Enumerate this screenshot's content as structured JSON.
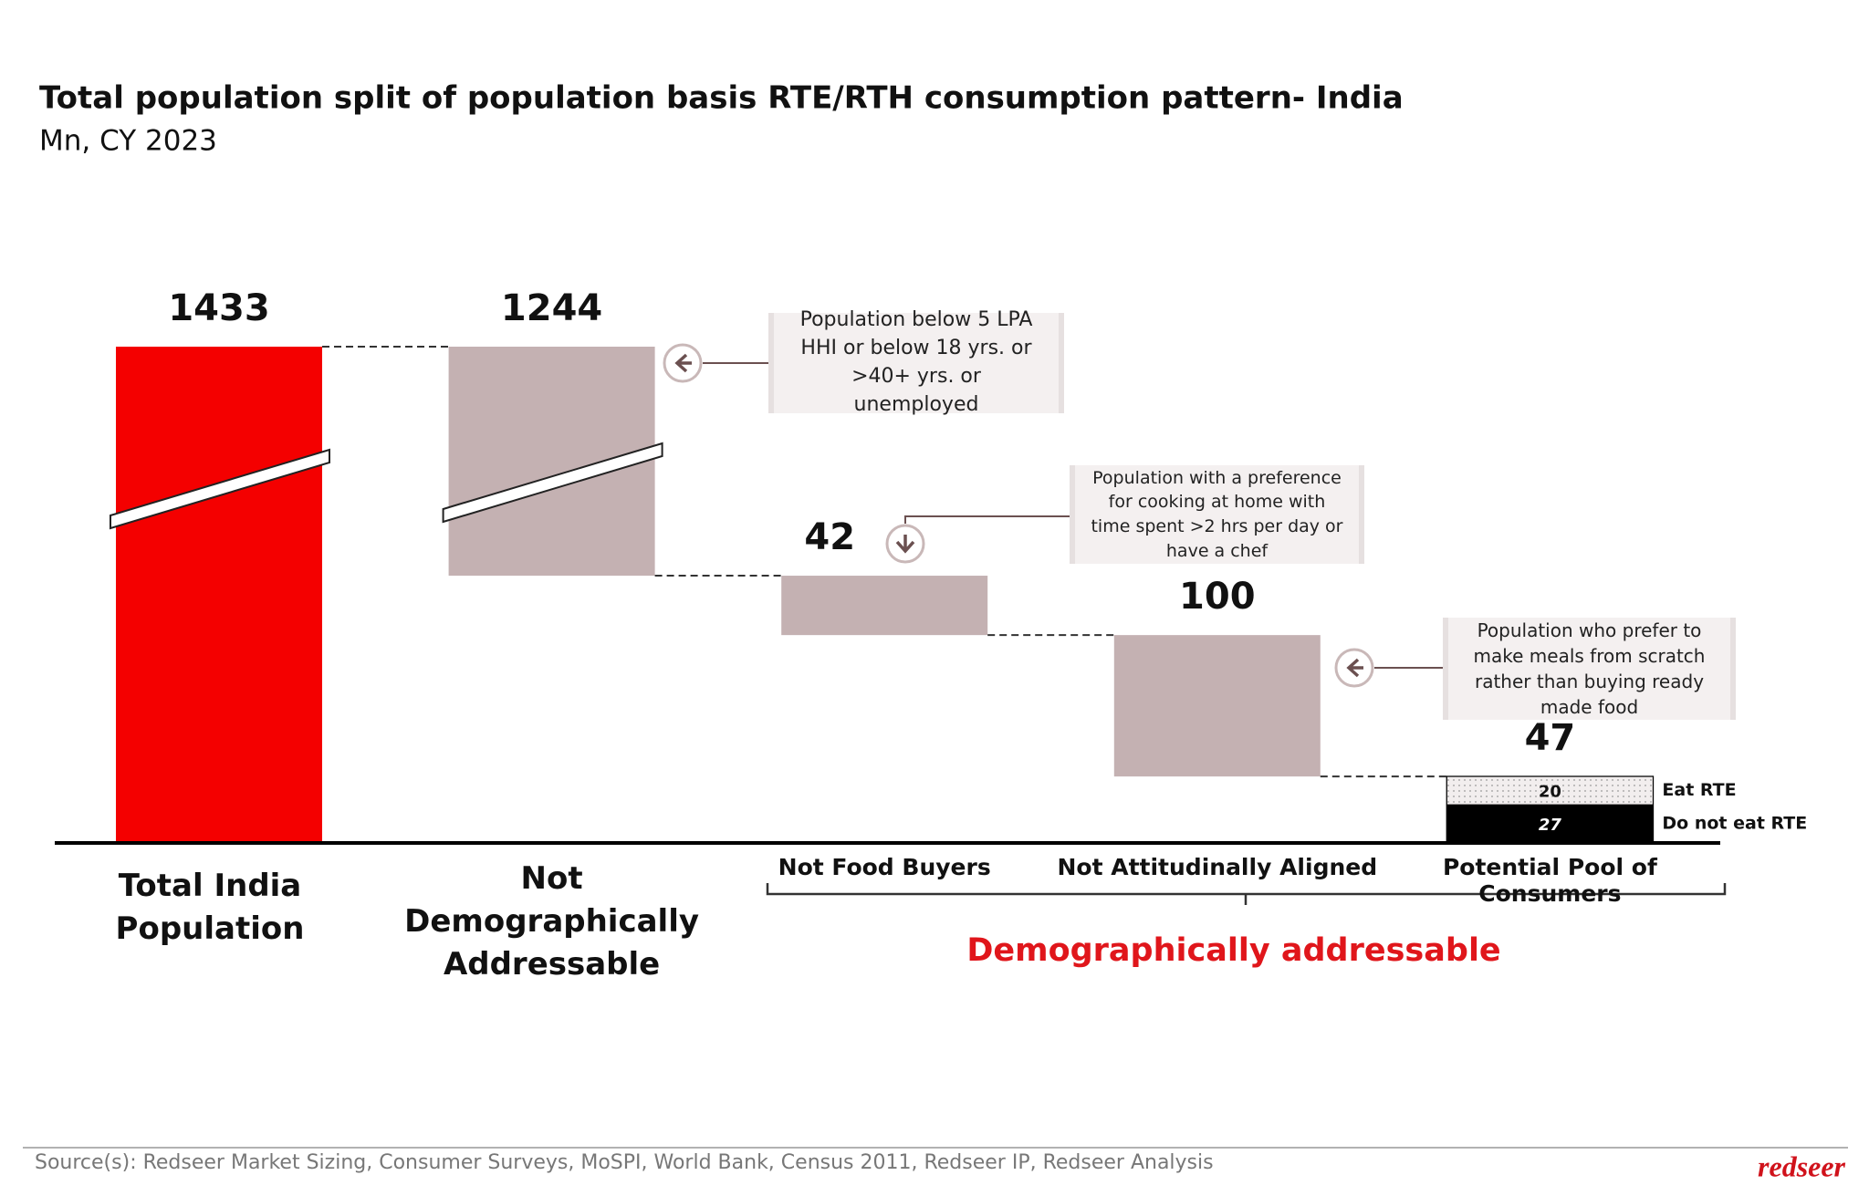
{
  "chart_data": {
    "type": "waterfall",
    "title": "Total population split of population basis RTE/RTH consumption pattern- India",
    "subtitle": "Mn, CY 2023",
    "categories": [
      "Total India Population",
      "Not Demographically Addressable",
      "Not Food Buyers",
      "Not Attitudinally Aligned",
      "Potential Pool of Consumers"
    ],
    "values": [
      1433,
      1244,
      42,
      100,
      47
    ],
    "total_color": "#f40000",
    "decrement_color": "#c4b1b2",
    "final_breakdown": [
      {
        "name": "Eat RTE",
        "value": 20,
        "color": "#f2eeee"
      },
      {
        "name": "Do not eat RTE",
        "value": 27,
        "color": "#000000"
      }
    ],
    "annotations": [
      "Population below 5 LPA HHI or below 18 yrs. or >40+ yrs. or unemployed",
      "Population with a preference for cooking at home with time spent >2 hrs per day or have a chef",
      "Population who prefer to make meals from scratch rather than buying ready made food"
    ],
    "group_label": "Demographically addressable",
    "source": "Source(s): Redseer Market Sizing, Consumer Surveys, MoSPI, World Bank, Census 2011, Redseer IP, Redseer Analysis",
    "logo": "redseer"
  }
}
